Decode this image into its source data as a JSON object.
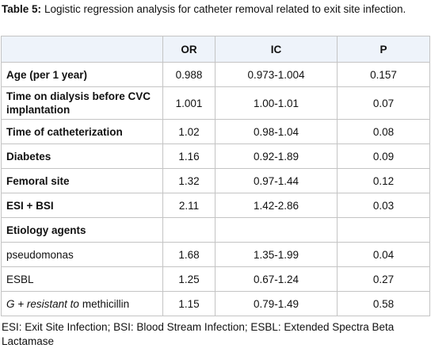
{
  "title": {
    "label": "Table 5:",
    "text": "Logistic regression analysis for catheter removal related to exit site infection."
  },
  "table": {
    "columns": [
      "OR",
      "IC",
      "P"
    ],
    "rows": [
      {
        "label": "Age (per 1 year)",
        "or": "0.988",
        "ic": "0.973-1.004",
        "p": "0.157"
      },
      {
        "label": "Time on dialysis before CVC implantation",
        "or": "1.001",
        "ic": "1.00-1.01",
        "p": "0.07"
      },
      {
        "label": "Time of catheterization",
        "or": "1.02",
        "ic": "0.98-1.04",
        "p": "0.08"
      },
      {
        "label": "Diabetes",
        "or": "1.16",
        "ic": "0.92-1.89",
        "p": "0.09"
      },
      {
        "label": "Femoral site",
        "or": "1.32",
        "ic": "0.97-1.44",
        "p": "0.12"
      },
      {
        "label": "ESI + BSI",
        "or": "2.11",
        "ic": "1.42-2.86",
        "p": "0.03"
      },
      {
        "label": "Etiology agents"
      },
      {
        "label": "pseudomonas",
        "or": "1.68",
        "ic": "1.35-1.99",
        "p": "0.04"
      },
      {
        "label": "ESBL",
        "or": "1.25",
        "ic": "0.67-1.24",
        "p": "0.27"
      },
      {
        "label_italic": "G + resistant to",
        "label": "methicillin",
        "or": "1.15",
        "ic": "0.79-1.49",
        "p": "0.58"
      }
    ]
  },
  "footnote": "ESI: Exit Site Infection; BSI: Blood Stream Infection; ESBL: Extended Spectra Beta Lactamase"
}
